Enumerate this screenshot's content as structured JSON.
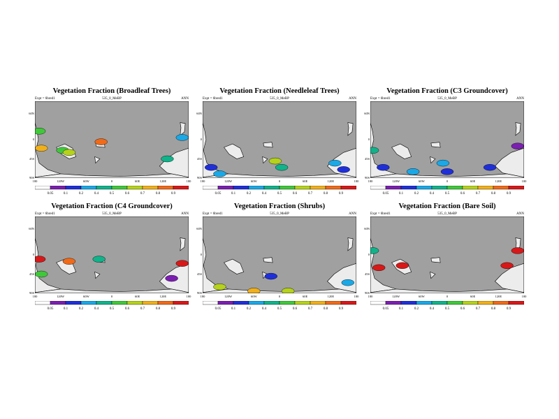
{
  "header_text": {
    "expt": "Expt = 6bred1",
    "run": "535_0_MeBP",
    "period": "ANN"
  },
  "legend": {
    "levels": [
      "0.05",
      "0.1",
      "0.2",
      "0.4",
      "0.5",
      "0.6",
      "0.7",
      "0.8",
      "0.9"
    ],
    "colors": [
      "#ffffff",
      "#7a1fb0",
      "#1f2fd8",
      "#1aa8e6",
      "#10b38a",
      "#40c83a",
      "#b6d21a",
      "#f0b01a",
      "#f06a18",
      "#d81818"
    ]
  },
  "axes": {
    "lon_ticks": [
      "180",
      "120W",
      "60W",
      "0",
      "60E",
      "120E",
      "180"
    ],
    "lat_ticks": [
      "60N",
      "0",
      "45S",
      "90S"
    ],
    "lat_tick_values": [
      60,
      0,
      -45,
      -90
    ]
  },
  "colors": {
    "ocean": "#a0a0a0",
    "land": "#ececec",
    "coast": "#000000"
  },
  "panels": [
    {
      "title": "Vegetation Fraction (Broadleaf Trees)",
      "patches": [
        {
          "lon": -170,
          "lat": 20,
          "level": 5
        },
        {
          "lon": -165,
          "lat": -20,
          "level": 7
        },
        {
          "lon": -115,
          "lat": -25,
          "level": 5
        },
        {
          "lon": -100,
          "lat": -30,
          "level": 6
        },
        {
          "lon": -25,
          "lat": -5,
          "level": 8
        },
        {
          "lon": 130,
          "lat": -45,
          "level": 4
        },
        {
          "lon": 165,
          "lat": 5,
          "level": 3
        }
      ]
    },
    {
      "title": "Vegetation Fraction (Needleleaf Trees)",
      "patches": [
        {
          "lon": -160,
          "lat": -65,
          "level": 2
        },
        {
          "lon": -140,
          "lat": -80,
          "level": 3
        },
        {
          "lon": -10,
          "lat": -50,
          "level": 6
        },
        {
          "lon": 5,
          "lat": -65,
          "level": 4
        },
        {
          "lon": 130,
          "lat": -55,
          "level": 3
        },
        {
          "lon": 150,
          "lat": -70,
          "level": 2
        }
      ]
    },
    {
      "title": "Vegetation Fraction (C3 Groundcover)",
      "patches": [
        {
          "lon": -150,
          "lat": -65,
          "level": 2
        },
        {
          "lon": -80,
          "lat": -75,
          "level": 3
        },
        {
          "lon": 0,
          "lat": -75,
          "level": 2
        },
        {
          "lon": 100,
          "lat": -65,
          "level": 2
        },
        {
          "lon": -175,
          "lat": -25,
          "level": 4
        },
        {
          "lon": -10,
          "lat": -55,
          "level": 3
        },
        {
          "lon": 165,
          "lat": -15,
          "level": 1
        }
      ]
    },
    {
      "title": "Vegetation Fraction (C4 Groundcover)",
      "patches": [
        {
          "lon": -170,
          "lat": -10,
          "level": 9
        },
        {
          "lon": -165,
          "lat": -45,
          "level": 5
        },
        {
          "lon": -100,
          "lat": -15,
          "level": 8
        },
        {
          "lon": -30,
          "lat": -10,
          "level": 4
        },
        {
          "lon": 140,
          "lat": -55,
          "level": 1
        },
        {
          "lon": 165,
          "lat": -20,
          "level": 9
        }
      ]
    },
    {
      "title": "Vegetation Fraction (Shrubs)",
      "patches": [
        {
          "lon": -140,
          "lat": -75,
          "level": 6
        },
        {
          "lon": -60,
          "lat": -85,
          "level": 7
        },
        {
          "lon": 20,
          "lat": -85,
          "level": 6
        },
        {
          "lon": 160,
          "lat": -65,
          "level": 3
        },
        {
          "lon": -20,
          "lat": -50,
          "level": 2
        }
      ]
    },
    {
      "title": "Vegetation Fraction (Bare Soil)",
      "patches": [
        {
          "lon": -160,
          "lat": -30,
          "level": 9
        },
        {
          "lon": -105,
          "lat": -25,
          "level": 9
        },
        {
          "lon": 140,
          "lat": -25,
          "level": 9
        },
        {
          "lon": 165,
          "lat": 10,
          "level": 9
        },
        {
          "lon": -175,
          "lat": 10,
          "level": 4
        }
      ]
    }
  ]
}
